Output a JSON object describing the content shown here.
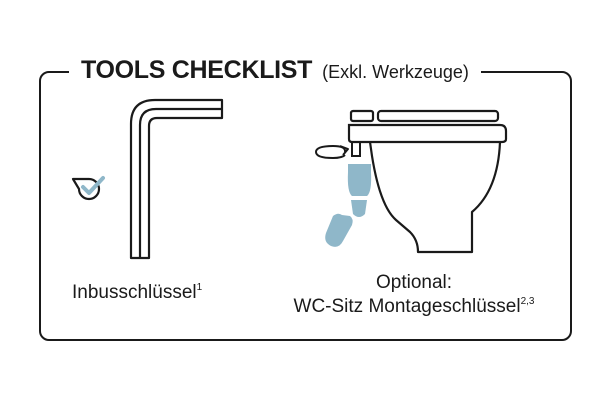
{
  "header": {
    "title": "TOOLS CHECKLIST",
    "subtitle": "(Exkl. Werkzeuge)"
  },
  "items": [
    {
      "label": "Inbusschlüssel",
      "note": "1",
      "checked": true,
      "icon": "allen-key-icon"
    },
    {
      "label_line1": "Optional:",
      "label_line2": "WC-Sitz Montageschlüssel",
      "note": "2,3",
      "icon": "toilet-wrench-icon"
    }
  ],
  "colors": {
    "ink": "#1a1a1a",
    "accent": "#8fb7c9"
  }
}
